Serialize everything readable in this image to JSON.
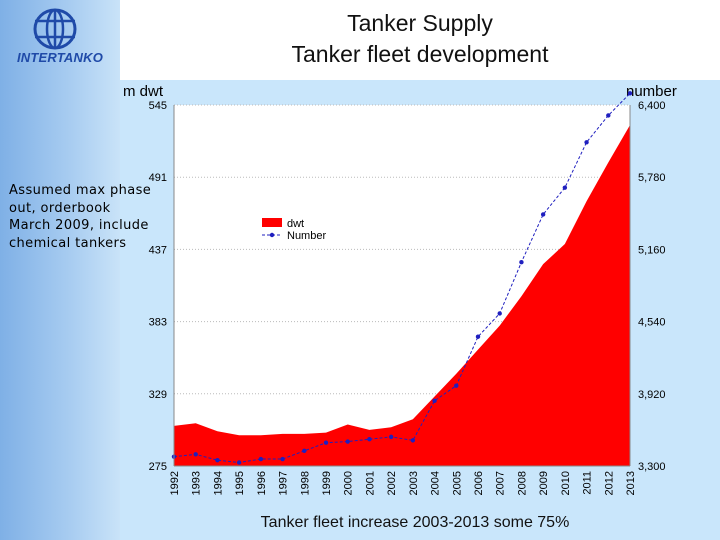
{
  "header": {
    "logo_text": "INTERTANKO",
    "title_line1": "Tanker Supply",
    "title_line2": "Tanker fleet development"
  },
  "note": "Assumed max phase out, orderbook March 2009, include chemical  tankers",
  "footer": "Tanker fleet increase 2003-2013 some 75%",
  "colors": {
    "area": "#ff0000",
    "line": "#1f1fbf",
    "plot_bg": "#ffffff",
    "left_band": "#a9cdf1",
    "content_bg": "#c9e6fb"
  },
  "chart_data": {
    "type": "area",
    "categories": [
      "1992",
      "1993",
      "1994",
      "1995",
      "1996",
      "1997",
      "1998",
      "1999",
      "2000",
      "2001",
      "2002",
      "2003",
      "2004",
      "2005",
      "2006",
      "2007",
      "2008",
      "2009",
      "2010",
      "2011",
      "2012",
      "2013"
    ],
    "series": [
      {
        "name": "dwt",
        "type": "area",
        "axis": "left",
        "values": [
          305,
          307,
          301,
          298,
          298,
          299,
          299,
          300,
          306,
          302,
          304,
          310,
          327,
          344,
          362,
          380,
          402,
          426,
          441,
          473,
          502,
          530
        ]
      },
      {
        "name": "Number",
        "type": "line",
        "axis": "right",
        "values": [
          3380,
          3400,
          3350,
          3330,
          3360,
          3360,
          3430,
          3500,
          3510,
          3530,
          3550,
          3520,
          3860,
          3990,
          4410,
          4610,
          5050,
          5460,
          5690,
          6080,
          6310,
          6500
        ]
      }
    ],
    "y_left": {
      "label": "m dwt",
      "range": [
        275,
        545
      ],
      "ticks": [
        275,
        329,
        383,
        437,
        491,
        545
      ]
    },
    "y_right": {
      "label": "number",
      "range": [
        3300,
        6400
      ],
      "ticks": [
        3300,
        3920,
        4540,
        5160,
        5780,
        6400
      ],
      "tick_labels": [
        "3,300",
        "3,920",
        "4,540",
        "5,160",
        "5,780",
        "6,400"
      ]
    },
    "grid": true,
    "legend_position": "upper-left inside plot"
  }
}
